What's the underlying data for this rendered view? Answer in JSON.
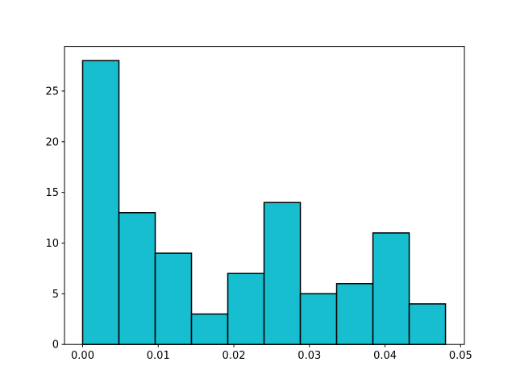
{
  "chart_data": {
    "type": "histogram",
    "bins": [
      0,
      0.0048,
      0.0096,
      0.0144,
      0.0192,
      0.024,
      0.0288,
      0.0336,
      0.0384,
      0.0432,
      0.048
    ],
    "values": [
      28,
      13,
      9,
      3,
      7,
      14,
      5,
      6,
      11,
      4
    ],
    "color": "#17becf",
    "edgecolor": "#000000",
    "xlim": [
      -0.0024,
      0.0505
    ],
    "ylim": [
      0,
      29.4
    ],
    "xticks": [
      {
        "value": 0,
        "label": "0.00"
      },
      {
        "value": 0.01,
        "label": "0.01"
      },
      {
        "value": 0.02,
        "label": "0.02"
      },
      {
        "value": 0.03,
        "label": "0.03"
      },
      {
        "value": 0.04,
        "label": "0.04"
      },
      {
        "value": 0.05,
        "label": "0.05"
      }
    ],
    "yticks": [
      0,
      5,
      10,
      15,
      20,
      25
    ]
  }
}
